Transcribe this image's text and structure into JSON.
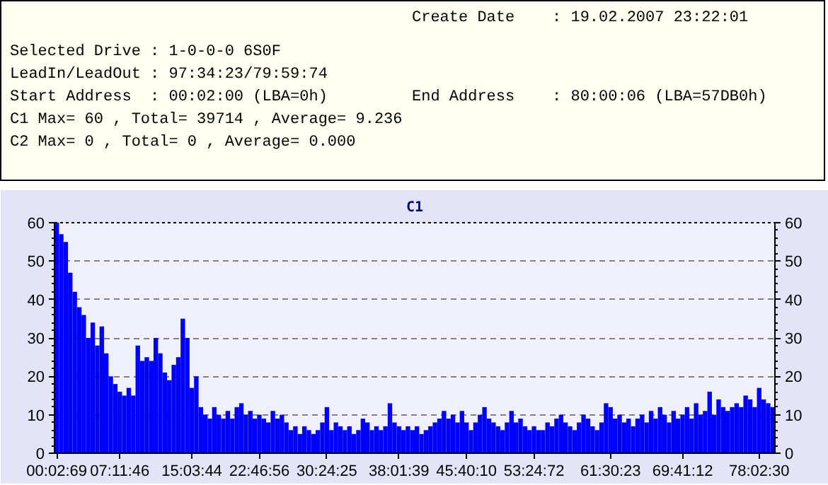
{
  "chart_data": {
    "type": "bar",
    "title": "C1",
    "annotations": [
      "Create Date    : 19.02.2007 23:22:01",
      "Selected Drive : 1-0-0-0 6S0F",
      "LeadIn/LeadOut : 97:34:23/79:59:74",
      "Start Address  : 00:02:00 (LBA=0h)",
      "End Address    : 80:00:06 (LBA=57DB0h)",
      "C1 Max= 60 , Total= 39714 , Average= 9.236",
      "C2 Max= 0 , Total= 0 , Average= 0.000"
    ],
    "categories": [
      "00:02:69",
      null,
      null,
      null,
      null,
      null,
      null,
      null,
      null,
      null,
      null,
      null,
      null,
      null,
      "07:11:46",
      null,
      null,
      null,
      null,
      null,
      null,
      null,
      null,
      null,
      null,
      null,
      null,
      null,
      null,
      null,
      "15:03:44",
      null,
      null,
      null,
      null,
      null,
      null,
      null,
      null,
      null,
      null,
      null,
      null,
      null,
      null,
      "22:46:56",
      null,
      null,
      null,
      null,
      null,
      null,
      null,
      null,
      null,
      null,
      null,
      null,
      null,
      null,
      "30:24:25",
      null,
      null,
      null,
      null,
      null,
      null,
      null,
      null,
      null,
      null,
      null,
      null,
      null,
      null,
      null,
      "38:01:39",
      null,
      null,
      null,
      null,
      null,
      null,
      null,
      null,
      null,
      null,
      null,
      null,
      null,
      null,
      "45:40:10",
      null,
      null,
      null,
      null,
      null,
      null,
      null,
      null,
      null,
      null,
      null,
      null,
      null,
      null,
      "53:24:72",
      null,
      null,
      null,
      null,
      null,
      null,
      null,
      null,
      null,
      null,
      null,
      null,
      null,
      null,
      null,
      null,
      "61:30:23",
      null,
      null,
      null,
      null,
      null,
      null,
      null,
      null,
      null,
      null,
      null,
      null,
      null,
      null,
      null,
      "69:41:12",
      null,
      null,
      null,
      null,
      null,
      null,
      null,
      null,
      null,
      null,
      null,
      null,
      null,
      null,
      null,
      null,
      "78:02:30",
      null,
      null,
      null
    ],
    "values": [
      60,
      57,
      55,
      47,
      42,
      38,
      36,
      30,
      34,
      28,
      33,
      26,
      20,
      18,
      16,
      15,
      17,
      15,
      28,
      24,
      25,
      24,
      30,
      26,
      21,
      19,
      23,
      25,
      35,
      30,
      17,
      20,
      12,
      10,
      9,
      12,
      10,
      9,
      11,
      9,
      12,
      13,
      10,
      11,
      9,
      10,
      9,
      8,
      11,
      9,
      10,
      8,
      6,
      7,
      5,
      7,
      6,
      5,
      6,
      8,
      12,
      6,
      8,
      7,
      6,
      7,
      5,
      6,
      9,
      8,
      6,
      7,
      6,
      7,
      13,
      8,
      7,
      6,
      7,
      6,
      7,
      5,
      6,
      7,
      8,
      9,
      11,
      9,
      10,
      8,
      11,
      8,
      6,
      8,
      10,
      12,
      9,
      8,
      7,
      6,
      8,
      11,
      8,
      9,
      7,
      6,
      7,
      6,
      6,
      8,
      7,
      9,
      10,
      8,
      7,
      6,
      8,
      10,
      9,
      7,
      6,
      8,
      13,
      12,
      9,
      10,
      8,
      9,
      7,
      9,
      10,
      8,
      11,
      9,
      12,
      10,
      8,
      11,
      9,
      10,
      12,
      9,
      13,
      10,
      11,
      16,
      10,
      14,
      12,
      11,
      12,
      13,
      12,
      15,
      14,
      12,
      17,
      14,
      13,
      12
    ],
    "color": "#0000ff",
    "ylim": [
      0,
      60
    ],
    "yticks": [
      0,
      10,
      20,
      30,
      40,
      50,
      60
    ],
    "y2lim": [
      0,
      60
    ],
    "y2ticks": [
      0,
      10,
      20,
      30,
      40,
      50,
      60
    ],
    "grid": "y"
  }
}
